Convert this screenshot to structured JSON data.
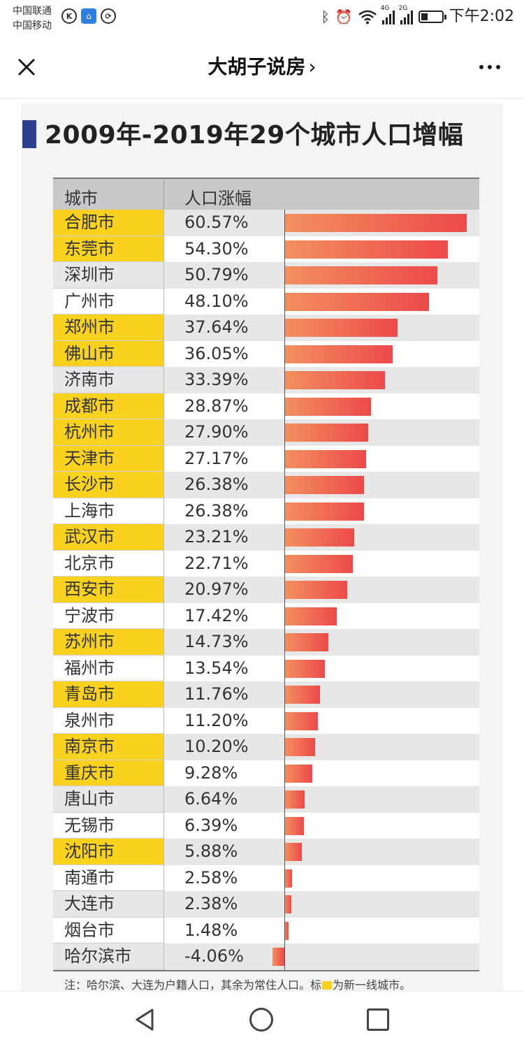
{
  "status_bar": {
    "carrier_1": "中国联通",
    "carrier_2": "中国移动",
    "net_4g": "4G",
    "net_2g": "2G",
    "time": "下午2:02",
    "icons": [
      "k-circle-icon",
      "app-badge-icon",
      "sync-icon",
      "bluetooth-icon",
      "alarm-icon",
      "wifi-icon",
      "signal-4g-icon",
      "signal-2g-icon",
      "battery-icon"
    ]
  },
  "title_bar": {
    "title": "大胡子说房",
    "chevron": "›",
    "close_icon": "close-icon",
    "more_icon": "more-icon"
  },
  "article": {
    "heading": "2009年-2019年29个城市人口增幅",
    "col_city": "城市",
    "col_growth": "人口涨幅",
    "note_before": "注：哈尔滨、大连为户籍人口，其余为常住人口。标",
    "note_after": "为新一线城市。",
    "highlight_color": "#f8d21e",
    "bar_color_start": "#f39060",
    "bar_color_end": "#ec4a4a"
  },
  "chart_data": {
    "type": "bar",
    "title": "2009年-2019年29个城市人口增幅",
    "xlabel": "城市",
    "ylabel": "人口涨幅",
    "categories": [
      "合肥市",
      "东莞市",
      "深圳市",
      "广州市",
      "郑州市",
      "佛山市",
      "济南市",
      "成都市",
      "杭州市",
      "天津市",
      "长沙市",
      "上海市",
      "武汉市",
      "北京市",
      "西安市",
      "宁波市",
      "苏州市",
      "福州市",
      "青岛市",
      "泉州市",
      "南京市",
      "重庆市",
      "唐山市",
      "无锡市",
      "沈阳市",
      "南通市",
      "大连市",
      "烟台市",
      "哈尔滨市"
    ],
    "values": [
      60.57,
      54.3,
      50.79,
      48.1,
      37.64,
      36.05,
      33.39,
      28.87,
      27.9,
      27.17,
      26.38,
      26.38,
      23.21,
      22.71,
      20.97,
      17.42,
      14.73,
      13.54,
      11.76,
      11.2,
      10.2,
      9.28,
      6.64,
      6.39,
      5.88,
      2.58,
      2.38,
      1.48,
      -4.06
    ],
    "labels": [
      "60.57%",
      "54.30%",
      "50.79%",
      "48.10%",
      "37.64%",
      "36.05%",
      "33.39%",
      "28.87%",
      "27.90%",
      "27.17%",
      "26.38%",
      "26.38%",
      "23.21%",
      "22.71%",
      "20.97%",
      "17.42%",
      "14.73%",
      "13.54%",
      "11.76%",
      "11.20%",
      "10.20%",
      "9.28%",
      "6.64%",
      "6.39%",
      "5.88%",
      "2.58%",
      "2.38%",
      "1.48%",
      "-4.06%"
    ],
    "new_first_tier": [
      true,
      true,
      false,
      false,
      true,
      true,
      false,
      true,
      true,
      true,
      true,
      false,
      true,
      false,
      true,
      false,
      true,
      false,
      true,
      false,
      true,
      true,
      false,
      false,
      true,
      false,
      false,
      false,
      false
    ],
    "xlim": [
      -4.06,
      60.57
    ]
  },
  "nav_bar": {
    "back_icon": "nav-back-icon",
    "home_icon": "nav-home-icon",
    "recents_icon": "nav-recents-icon"
  }
}
